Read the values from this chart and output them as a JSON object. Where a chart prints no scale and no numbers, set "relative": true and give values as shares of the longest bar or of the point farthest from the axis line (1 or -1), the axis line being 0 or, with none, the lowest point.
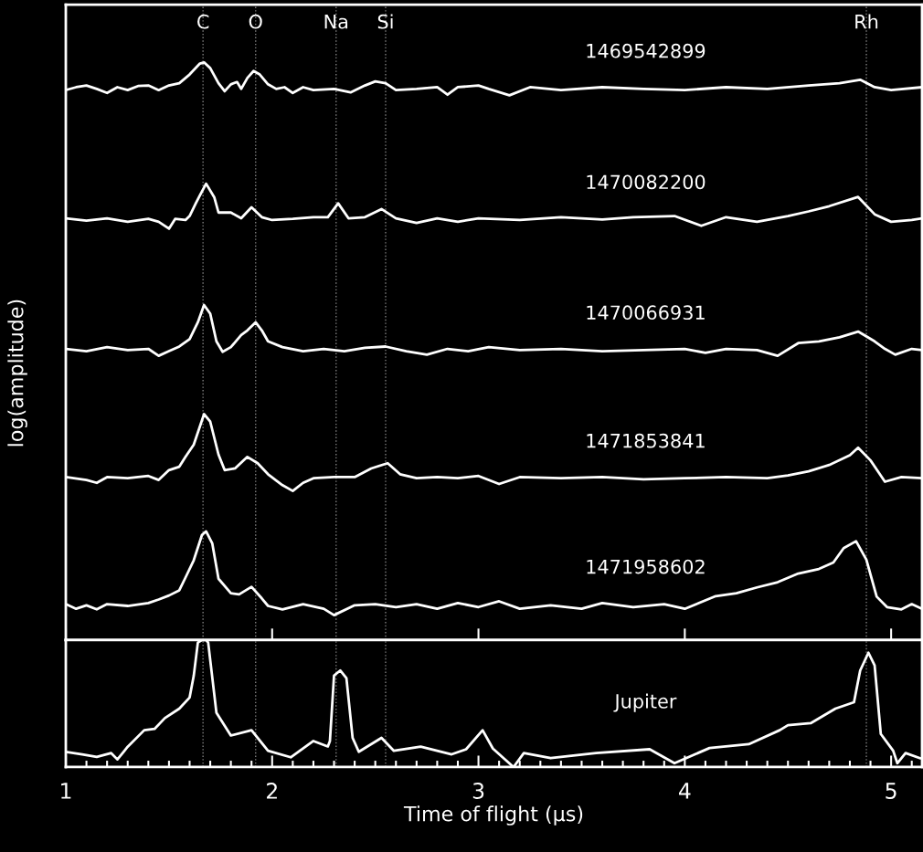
{
  "chart_data": [
    {
      "type": "line",
      "relative": true,
      "ylabel": "log(amplitude)",
      "xlim": [
        1,
        5.15
      ],
      "xticks": [
        1,
        2,
        3,
        4,
        5
      ],
      "tick_labels": false,
      "line_style": "solid",
      "ref_lines": [
        {
          "axis": "x",
          "value": 1.665,
          "label": "C",
          "color": "#808080",
          "line_style": "dotted"
        },
        {
          "axis": "x",
          "value": 1.92,
          "label": "O",
          "color": "#808080",
          "line_style": "dotted"
        },
        {
          "axis": "x",
          "value": 2.31,
          "label": "Na",
          "color": "#808080",
          "line_style": "dotted"
        },
        {
          "axis": "x",
          "value": 2.55,
          "label": "Si",
          "color": "#808080",
          "line_style": "dotted"
        },
        {
          "axis": "x",
          "value": 4.88,
          "label": "Rh",
          "color": "#808080",
          "line_style": "dotted"
        }
      ],
      "series": [
        {
          "name": "1469542899",
          "color": "#ffffff",
          "x": [
            1.0,
            1.05,
            1.1,
            1.15,
            1.2,
            1.25,
            1.3,
            1.35,
            1.4,
            1.45,
            1.5,
            1.55,
            1.6,
            1.65,
            1.67,
            1.7,
            1.74,
            1.77,
            1.8,
            1.83,
            1.85,
            1.88,
            1.91,
            1.94,
            1.98,
            2.02,
            2.06,
            2.1,
            2.15,
            2.2,
            2.3,
            2.38,
            2.45,
            2.5,
            2.55,
            2.6,
            2.7,
            2.8,
            2.85,
            2.9,
            3.0,
            3.05,
            3.15,
            3.25,
            3.4,
            3.6,
            3.8,
            4.0,
            4.2,
            4.4,
            4.6,
            4.75,
            4.85,
            4.92,
            5.0,
            5.15
          ],
          "values": [
            0.952,
            0.957,
            0.96,
            0.954,
            0.947,
            0.957,
            0.952,
            0.959,
            0.96,
            0.952,
            0.96,
            0.964,
            0.979,
            0.998,
            1.0,
            0.99,
            0.964,
            0.95,
            0.962,
            0.966,
            0.954,
            0.973,
            0.985,
            0.979,
            0.962,
            0.954,
            0.957,
            0.947,
            0.957,
            0.952,
            0.954,
            0.948,
            0.96,
            0.967,
            0.964,
            0.952,
            0.954,
            0.957,
            0.944,
            0.957,
            0.96,
            0.954,
            0.943,
            0.957,
            0.952,
            0.957,
            0.954,
            0.952,
            0.957,
            0.954,
            0.96,
            0.964,
            0.97,
            0.957,
            0.952,
            0.957
          ]
        },
        {
          "name": "1470082200",
          "color": "#ffffff",
          "x": [
            1.0,
            1.1,
            1.2,
            1.3,
            1.4,
            1.45,
            1.5,
            1.53,
            1.58,
            1.6,
            1.63,
            1.65,
            1.68,
            1.72,
            1.74,
            1.8,
            1.85,
            1.9,
            1.95,
            2.0,
            2.1,
            2.2,
            2.27,
            2.32,
            2.37,
            2.45,
            2.53,
            2.6,
            2.7,
            2.8,
            2.9,
            3.0,
            3.2,
            3.4,
            3.6,
            3.75,
            3.95,
            4.08,
            4.2,
            4.35,
            4.5,
            4.6,
            4.7,
            4.84,
            4.92,
            5.0,
            5.1,
            5.15
          ],
          "values": [
            0.73,
            0.726,
            0.73,
            0.724,
            0.729,
            0.724,
            0.712,
            0.729,
            0.727,
            0.734,
            0.756,
            0.77,
            0.79,
            0.766,
            0.74,
            0.74,
            0.73,
            0.749,
            0.732,
            0.727,
            0.729,
            0.732,
            0.732,
            0.756,
            0.73,
            0.732,
            0.746,
            0.73,
            0.722,
            0.73,
            0.724,
            0.73,
            0.727,
            0.732,
            0.728,
            0.732,
            0.734,
            0.717,
            0.732,
            0.724,
            0.734,
            0.742,
            0.751,
            0.767,
            0.737,
            0.724,
            0.727,
            0.73
          ]
        },
        {
          "name": "1470066931",
          "color": "#ffffff",
          "x": [
            1.0,
            1.1,
            1.2,
            1.3,
            1.4,
            1.45,
            1.5,
            1.55,
            1.6,
            1.64,
            1.67,
            1.7,
            1.73,
            1.76,
            1.8,
            1.85,
            1.88,
            1.92,
            1.95,
            1.98,
            2.05,
            2.15,
            2.25,
            2.35,
            2.45,
            2.55,
            2.65,
            2.75,
            2.85,
            2.95,
            3.05,
            3.2,
            3.4,
            3.6,
            3.8,
            4.0,
            4.1,
            4.2,
            4.35,
            4.45,
            4.55,
            4.65,
            4.75,
            4.84,
            4.92,
            4.97,
            5.02,
            5.1,
            5.15
          ],
          "values": [
            0.504,
            0.5,
            0.507,
            0.502,
            0.504,
            0.492,
            0.5,
            0.508,
            0.521,
            0.55,
            0.58,
            0.565,
            0.517,
            0.499,
            0.507,
            0.528,
            0.536,
            0.55,
            0.536,
            0.517,
            0.507,
            0.5,
            0.504,
            0.5,
            0.506,
            0.508,
            0.5,
            0.494,
            0.504,
            0.5,
            0.507,
            0.502,
            0.504,
            0.5,
            0.502,
            0.504,
            0.497,
            0.504,
            0.502,
            0.492,
            0.514,
            0.517,
            0.524,
            0.534,
            0.517,
            0.504,
            0.494,
            0.504,
            0.502
          ]
        },
        {
          "name": "1471853841",
          "color": "#ffffff",
          "x": [
            1.0,
            1.1,
            1.15,
            1.2,
            1.3,
            1.4,
            1.45,
            1.5,
            1.55,
            1.58,
            1.62,
            1.67,
            1.7,
            1.74,
            1.77,
            1.82,
            1.88,
            1.93,
            1.98,
            2.05,
            2.1,
            2.15,
            2.2,
            2.3,
            2.4,
            2.48,
            2.56,
            2.62,
            2.7,
            2.8,
            2.9,
            3.0,
            3.1,
            3.2,
            3.4,
            3.6,
            3.8,
            4.0,
            4.2,
            4.4,
            4.5,
            4.6,
            4.7,
            4.8,
            4.84,
            4.9,
            4.97,
            5.05,
            5.15
          ],
          "values": [
            0.282,
            0.277,
            0.272,
            0.282,
            0.28,
            0.284,
            0.277,
            0.294,
            0.3,
            0.317,
            0.338,
            0.391,
            0.378,
            0.321,
            0.294,
            0.297,
            0.317,
            0.306,
            0.287,
            0.268,
            0.258,
            0.272,
            0.28,
            0.282,
            0.282,
            0.297,
            0.306,
            0.287,
            0.28,
            0.282,
            0.28,
            0.284,
            0.27,
            0.282,
            0.28,
            0.282,
            0.278,
            0.28,
            0.282,
            0.28,
            0.285,
            0.292,
            0.303,
            0.32,
            0.333,
            0.311,
            0.274,
            0.282,
            0.28
          ]
        },
        {
          "name": "1471958602",
          "color": "#ffffff",
          "x": [
            1.0,
            1.05,
            1.1,
            1.15,
            1.2,
            1.3,
            1.4,
            1.45,
            1.5,
            1.55,
            1.58,
            1.62,
            1.66,
            1.68,
            1.71,
            1.74,
            1.8,
            1.84,
            1.9,
            1.95,
            1.98,
            2.05,
            2.15,
            2.25,
            2.3,
            2.4,
            2.5,
            2.6,
            2.7,
            2.8,
            2.9,
            3.0,
            3.1,
            3.2,
            3.35,
            3.5,
            3.6,
            3.75,
            3.9,
            4.0,
            4.15,
            4.25,
            4.35,
            4.45,
            4.55,
            4.65,
            4.72,
            4.77,
            4.83,
            4.88,
            4.93,
            4.98,
            5.05,
            5.1,
            5.15
          ],
          "values": [
            0.062,
            0.054,
            0.06,
            0.053,
            0.062,
            0.059,
            0.064,
            0.07,
            0.077,
            0.086,
            0.108,
            0.138,
            0.182,
            0.188,
            0.167,
            0.106,
            0.081,
            0.079,
            0.092,
            0.072,
            0.059,
            0.053,
            0.062,
            0.054,
            0.043,
            0.06,
            0.062,
            0.057,
            0.062,
            0.054,
            0.064,
            0.057,
            0.067,
            0.054,
            0.06,
            0.054,
            0.064,
            0.057,
            0.062,
            0.054,
            0.076,
            0.081,
            0.091,
            0.1,
            0.115,
            0.123,
            0.134,
            0.159,
            0.171,
            0.139,
            0.075,
            0.057,
            0.053,
            0.062,
            0.054
          ]
        }
      ]
    },
    {
      "type": "line",
      "relative": true,
      "xlabel": "Time of flight (μs)",
      "xlim": [
        1,
        5.15
      ],
      "tick_labels": "x",
      "line_style": "solid",
      "xticks": [
        1,
        {
          "value": 1.1,
          "label": null
        },
        {
          "value": 1.2,
          "label": null
        },
        {
          "value": 1.3,
          "label": null
        },
        {
          "value": 1.4,
          "label": null
        },
        {
          "value": 1.5,
          "label": null
        },
        {
          "value": 1.6,
          "label": null
        },
        {
          "value": 1.7,
          "label": null
        },
        {
          "value": 1.8,
          "label": null
        },
        {
          "value": 1.9,
          "label": null
        },
        2,
        {
          "value": 2.1,
          "label": null
        },
        {
          "value": 2.2,
          "label": null
        },
        {
          "value": 2.3,
          "label": null
        },
        {
          "value": 2.4,
          "label": null
        },
        {
          "value": 2.5,
          "label": null
        },
        {
          "value": 2.6,
          "label": null
        },
        {
          "value": 2.7,
          "label": null
        },
        {
          "value": 2.8,
          "label": null
        },
        {
          "value": 2.9,
          "label": null
        },
        3,
        {
          "value": 3.1,
          "label": null
        },
        {
          "value": 3.2,
          "label": null
        },
        {
          "value": 3.3,
          "label": null
        },
        {
          "value": 3.4,
          "label": null
        },
        {
          "value": 3.5,
          "label": null
        },
        {
          "value": 3.6,
          "label": null
        },
        {
          "value": 3.7,
          "label": null
        },
        {
          "value": 3.8,
          "label": null
        },
        {
          "value": 3.9,
          "label": null
        },
        4,
        {
          "value": 4.1,
          "label": null
        },
        {
          "value": 4.2,
          "label": null
        },
        {
          "value": 4.3,
          "label": null
        },
        {
          "value": 4.4,
          "label": null
        },
        {
          "value": 4.5,
          "label": null
        },
        {
          "value": 4.6,
          "label": null
        },
        {
          "value": 4.7,
          "label": null
        },
        {
          "value": 4.8,
          "label": null
        },
        {
          "value": 4.9,
          "label": null
        },
        5,
        {
          "value": 5.1,
          "label": null
        }
      ],
      "ref_lines": [
        {
          "axis": "x",
          "value": 1.665,
          "label": null,
          "color": "#808080",
          "line_style": "dotted"
        },
        {
          "axis": "x",
          "value": 1.92,
          "label": null,
          "color": "#808080",
          "line_style": "dotted"
        },
        {
          "axis": "x",
          "value": 2.31,
          "label": null,
          "color": "#808080",
          "line_style": "dotted"
        },
        {
          "axis": "x",
          "value": 2.55,
          "label": null,
          "color": "#808080",
          "line_style": "dotted"
        },
        {
          "axis": "x",
          "value": 4.88,
          "label": null,
          "color": "#808080",
          "line_style": "dotted"
        }
      ],
      "series": [
        {
          "name": "Jupiter",
          "color": "#ffffff",
          "x": [
            1.0,
            1.08,
            1.15,
            1.22,
            1.25,
            1.28,
            1.3,
            1.38,
            1.43,
            1.48,
            1.55,
            1.6,
            1.62,
            1.64,
            1.66,
            1.68,
            1.69,
            1.73,
            1.8,
            1.9,
            1.98,
            2.09,
            2.2,
            2.27,
            2.28,
            2.3,
            2.33,
            2.36,
            2.39,
            2.42,
            2.53,
            2.59,
            2.72,
            2.87,
            2.94,
            3.02,
            3.07,
            3.17,
            3.22,
            3.35,
            3.57,
            3.83,
            3.95,
            4.12,
            4.31,
            4.46,
            4.5,
            4.61,
            4.73,
            4.82,
            4.85,
            4.89,
            4.92,
            4.95,
            5.01,
            5.03,
            5.07,
            5.14
          ],
          "values": [
            0.12,
            0.1,
            0.08,
            0.11,
            0.06,
            0.12,
            0.16,
            0.29,
            0.3,
            0.385,
            0.46,
            0.547,
            0.718,
            0.98,
            1.0,
            1.0,
            0.98,
            0.427,
            0.248,
            0.29,
            0.128,
            0.077,
            0.205,
            0.162,
            0.205,
            0.72,
            0.76,
            0.7,
            0.23,
            0.12,
            0.23,
            0.128,
            0.16,
            0.1,
            0.14,
            0.29,
            0.145,
            0.0,
            0.11,
            0.07,
            0.11,
            0.14,
            0.03,
            0.15,
            0.18,
            0.29,
            0.33,
            0.345,
            0.46,
            0.51,
            0.76,
            0.9,
            0.8,
            0.26,
            0.128,
            0.03,
            0.11,
            0.07
          ]
        }
      ]
    }
  ]
}
